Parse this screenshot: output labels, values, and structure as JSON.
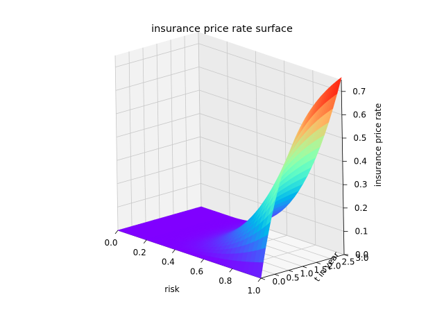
{
  "chart_data": {
    "type": "surface3d",
    "title": "insurance price rate surface",
    "xlabel": "risk",
    "ylabel": "t in year",
    "zlabel": "insurance price rate",
    "xlim": [
      0,
      1
    ],
    "ylim": [
      0,
      3
    ],
    "zlim": [
      0,
      0.75
    ],
    "xticks": [
      "0.0",
      "0.2",
      "0.4",
      "0.6",
      "0.8",
      "1.0"
    ],
    "yticks": [
      "0.0",
      "0.5",
      "1.0",
      "1.5",
      "2.0",
      "2.5",
      "3.0"
    ],
    "zticks": [
      "0.0",
      "0.1",
      "0.2",
      "0.3",
      "0.4",
      "0.5",
      "0.6",
      "0.7"
    ],
    "colormap": "rainbow",
    "grid": true,
    "surface_samples": {
      "risk": [
        0,
        0.2,
        0.4,
        0.6,
        0.8,
        1.0
      ],
      "t": [
        0,
        1.5,
        3.0
      ],
      "rate_at_t0": [
        0,
        0,
        0,
        0,
        0,
        0
      ],
      "rate_at_t1.5": [
        0,
        0,
        0.01,
        0.07,
        0.22,
        0.42
      ],
      "rate_at_t3": [
        0,
        0,
        0.03,
        0.16,
        0.42,
        0.76
      ]
    }
  }
}
